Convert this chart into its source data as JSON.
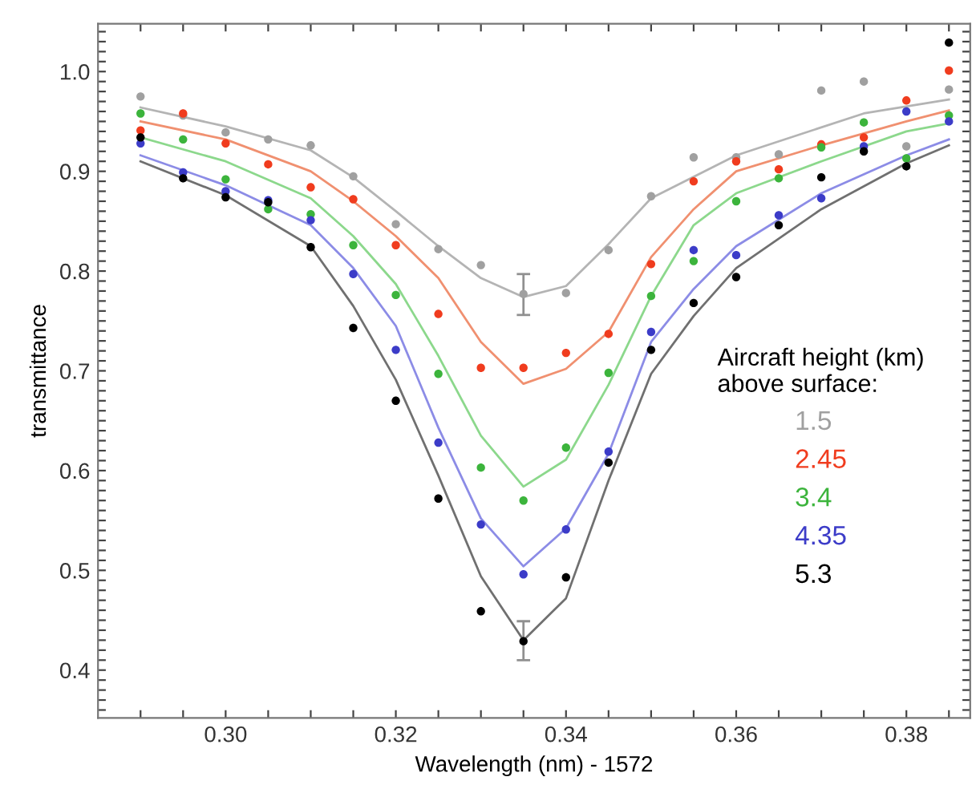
{
  "chart_data": {
    "type": "scatter",
    "xlabel": "Wavelength (nm) - 1572",
    "ylabel": "transmittance",
    "legend_title": "Aircraft height (km)\nabove surface:",
    "xlim": [
      0.285,
      0.3875
    ],
    "ylim": [
      0.352,
      1.048
    ],
    "xticks": [
      {
        "value": 0.29,
        "label": null
      },
      {
        "value": 0.295,
        "label": null
      },
      {
        "value": 0.3,
        "label": "0.30"
      },
      {
        "value": 0.305,
        "label": null
      },
      {
        "value": 0.31,
        "label": null
      },
      {
        "value": 0.315,
        "label": null
      },
      {
        "value": 0.32,
        "label": "0.32"
      },
      {
        "value": 0.325,
        "label": null
      },
      {
        "value": 0.33,
        "label": null
      },
      {
        "value": 0.335,
        "label": null
      },
      {
        "value": 0.34,
        "label": "0.34"
      },
      {
        "value": 0.345,
        "label": null
      },
      {
        "value": 0.35,
        "label": null
      },
      {
        "value": 0.355,
        "label": null
      },
      {
        "value": 0.36,
        "label": "0.36"
      },
      {
        "value": 0.365,
        "label": null
      },
      {
        "value": 0.37,
        "label": null
      },
      {
        "value": 0.375,
        "label": null
      },
      {
        "value": 0.38,
        "label": "0.38"
      },
      {
        "value": 0.385,
        "label": null
      }
    ],
    "yticks": [
      {
        "value": 0.4,
        "label": "0.4"
      },
      {
        "value": 0.5,
        "label": "0.5"
      },
      {
        "value": 0.6,
        "label": "0.6"
      },
      {
        "value": 0.7,
        "label": "0.7"
      },
      {
        "value": 0.8,
        "label": "0.8"
      },
      {
        "value": 0.9,
        "label": "0.9"
      },
      {
        "value": 1.0,
        "label": "1.0"
      },
      {
        "value": 0.36,
        "label": null
      },
      {
        "value": 0.37,
        "label": null
      },
      {
        "value": 0.38,
        "label": null
      },
      {
        "value": 0.39,
        "label": null
      },
      {
        "value": 0.41,
        "label": null
      },
      {
        "value": 0.42,
        "label": null
      },
      {
        "value": 0.43,
        "label": null
      },
      {
        "value": 0.44,
        "label": null
      },
      {
        "value": 0.45,
        "label": null
      },
      {
        "value": 0.46,
        "label": null
      },
      {
        "value": 0.47,
        "label": null
      },
      {
        "value": 0.48,
        "label": null
      },
      {
        "value": 0.49,
        "label": null
      },
      {
        "value": 0.51,
        "label": null
      },
      {
        "value": 0.52,
        "label": null
      },
      {
        "value": 0.53,
        "label": null
      },
      {
        "value": 0.54,
        "label": null
      },
      {
        "value": 0.55,
        "label": null
      },
      {
        "value": 0.56,
        "label": null
      },
      {
        "value": 0.57,
        "label": null
      },
      {
        "value": 0.58,
        "label": null
      },
      {
        "value": 0.59,
        "label": null
      },
      {
        "value": 0.61,
        "label": null
      },
      {
        "value": 0.62,
        "label": null
      },
      {
        "value": 0.63,
        "label": null
      },
      {
        "value": 0.64,
        "label": null
      },
      {
        "value": 0.65,
        "label": null
      },
      {
        "value": 0.66,
        "label": null
      },
      {
        "value": 0.67,
        "label": null
      },
      {
        "value": 0.68,
        "label": null
      },
      {
        "value": 0.69,
        "label": null
      },
      {
        "value": 0.71,
        "label": null
      },
      {
        "value": 0.72,
        "label": null
      },
      {
        "value": 0.73,
        "label": null
      },
      {
        "value": 0.74,
        "label": null
      },
      {
        "value": 0.75,
        "label": null
      },
      {
        "value": 0.76,
        "label": null
      },
      {
        "value": 0.77,
        "label": null
      },
      {
        "value": 0.78,
        "label": null
      },
      {
        "value": 0.79,
        "label": null
      },
      {
        "value": 0.81,
        "label": null
      },
      {
        "value": 0.82,
        "label": null
      },
      {
        "value": 0.83,
        "label": null
      },
      {
        "value": 0.84,
        "label": null
      },
      {
        "value": 0.85,
        "label": null
      },
      {
        "value": 0.86,
        "label": null
      },
      {
        "value": 0.87,
        "label": null
      },
      {
        "value": 0.88,
        "label": null
      },
      {
        "value": 0.89,
        "label": null
      },
      {
        "value": 0.91,
        "label": null
      },
      {
        "value": 0.92,
        "label": null
      },
      {
        "value": 0.93,
        "label": null
      },
      {
        "value": 0.94,
        "label": null
      },
      {
        "value": 0.95,
        "label": null
      },
      {
        "value": 0.96,
        "label": null
      },
      {
        "value": 0.97,
        "label": null
      },
      {
        "value": 0.98,
        "label": null
      },
      {
        "value": 0.99,
        "label": null
      },
      {
        "value": 1.01,
        "label": null
      },
      {
        "value": 1.02,
        "label": null
      },
      {
        "value": 1.03,
        "label": null
      },
      {
        "value": 1.04,
        "label": null
      }
    ],
    "x": [
      0.29,
      0.295,
      0.3,
      0.305,
      0.31,
      0.315,
      0.32,
      0.325,
      0.33,
      0.335,
      0.34,
      0.345,
      0.35,
      0.355,
      0.36,
      0.365,
      0.37,
      0.375,
      0.38,
      0.385
    ],
    "grid": false,
    "legend": "right",
    "marker": "circle",
    "series": [
      {
        "type": "line",
        "marker": "none",
        "color": "#b4b4b4",
        "x": [
          0.29,
          0.3,
          0.31,
          0.315,
          0.32,
          0.325,
          0.33,
          0.335,
          0.34,
          0.345,
          0.35,
          0.36,
          0.375,
          0.385
        ],
        "values": [
          0.964,
          0.945,
          0.921,
          0.894,
          0.86,
          0.825,
          0.793,
          0.774,
          0.785,
          0.827,
          0.873,
          0.916,
          0.958,
          0.972
        ]
      },
      {
        "type": "line",
        "marker": "none",
        "color": "#f09070",
        "x": [
          0.29,
          0.3,
          0.31,
          0.315,
          0.32,
          0.325,
          0.33,
          0.335,
          0.34,
          0.345,
          0.35,
          0.355,
          0.36,
          0.37,
          0.38,
          0.385
        ],
        "values": [
          0.95,
          0.932,
          0.9,
          0.87,
          0.835,
          0.793,
          0.729,
          0.687,
          0.702,
          0.739,
          0.814,
          0.862,
          0.9,
          0.926,
          0.95,
          0.961
        ]
      },
      {
        "type": "line",
        "marker": "none",
        "color": "#8cd88c",
        "x": [
          0.29,
          0.3,
          0.31,
          0.315,
          0.32,
          0.325,
          0.33,
          0.335,
          0.34,
          0.345,
          0.35,
          0.355,
          0.36,
          0.37,
          0.38,
          0.385
        ],
        "values": [
          0.934,
          0.91,
          0.873,
          0.835,
          0.787,
          0.715,
          0.635,
          0.584,
          0.611,
          0.686,
          0.775,
          0.846,
          0.878,
          0.91,
          0.94,
          0.948
        ]
      },
      {
        "type": "line",
        "marker": "none",
        "color": "#8c8ce6",
        "x": [
          0.29,
          0.3,
          0.31,
          0.315,
          0.32,
          0.325,
          0.33,
          0.335,
          0.34,
          0.345,
          0.35,
          0.355,
          0.36,
          0.37,
          0.38,
          0.385
        ],
        "values": [
          0.916,
          0.886,
          0.846,
          0.803,
          0.745,
          0.643,
          0.552,
          0.504,
          0.542,
          0.617,
          0.729,
          0.782,
          0.825,
          0.878,
          0.916,
          0.932
        ]
      },
      {
        "type": "line",
        "marker": "none",
        "color": "#707070",
        "x": [
          0.29,
          0.3,
          0.31,
          0.315,
          0.32,
          0.325,
          0.33,
          0.335,
          0.34,
          0.345,
          0.35,
          0.355,
          0.36,
          0.37,
          0.38,
          0.385
        ],
        "values": [
          0.91,
          0.876,
          0.825,
          0.765,
          0.691,
          0.595,
          0.494,
          0.43,
          0.472,
          0.59,
          0.697,
          0.755,
          0.803,
          0.862,
          0.908,
          0.926
        ]
      },
      {
        "name": "1.5",
        "color": "#a0a0a0",
        "values": [
          0.975,
          0.956,
          0.939,
          0.932,
          0.926,
          0.895,
          0.847,
          0.822,
          0.806,
          0.777,
          0.778,
          0.821,
          0.875,
          0.914,
          0.914,
          0.917,
          0.981,
          0.99,
          0.925,
          0.982
        ],
        "errors": [
          null,
          null,
          null,
          null,
          null,
          null,
          null,
          null,
          null,
          [
            0.756,
            0.797
          ],
          null,
          null,
          null,
          null,
          null,
          null,
          null,
          null,
          null,
          null
        ]
      },
      {
        "name": "2.45",
        "color": "#f03c1e",
        "values": [
          0.941,
          0.958,
          0.928,
          0.907,
          0.884,
          0.872,
          0.826,
          0.757,
          0.703,
          0.703,
          0.718,
          0.737,
          0.807,
          0.89,
          0.91,
          0.902,
          0.927,
          0.934,
          0.971,
          1.001
        ]
      },
      {
        "name": "3.4",
        "color": "#3cb43c",
        "values": [
          0.958,
          0.932,
          0.892,
          0.862,
          0.857,
          0.826,
          0.776,
          0.697,
          0.603,
          0.57,
          0.623,
          0.698,
          0.775,
          0.81,
          0.87,
          0.893,
          0.924,
          0.949,
          0.913,
          0.956
        ]
      },
      {
        "name": "4.35",
        "color": "#3c3cc8",
        "values": [
          0.928,
          0.899,
          0.88,
          0.871,
          0.851,
          0.797,
          0.721,
          0.628,
          0.546,
          0.496,
          0.541,
          0.619,
          0.739,
          0.821,
          0.816,
          0.856,
          0.873,
          0.925,
          0.96,
          0.95
        ]
      },
      {
        "name": "5.3",
        "color": "#000000",
        "values": [
          0.934,
          0.893,
          0.874,
          0.869,
          0.824,
          0.743,
          0.67,
          0.572,
          0.459,
          0.429,
          0.493,
          0.608,
          0.721,
          0.768,
          0.794,
          0.846,
          0.894,
          0.92,
          0.905,
          1.029
        ],
        "errors": [
          null,
          null,
          null,
          null,
          null,
          null,
          null,
          null,
          null,
          [
            0.41,
            0.449
          ],
          null,
          null,
          null,
          null,
          null,
          null,
          null,
          null,
          null,
          null
        ]
      }
    ]
  }
}
